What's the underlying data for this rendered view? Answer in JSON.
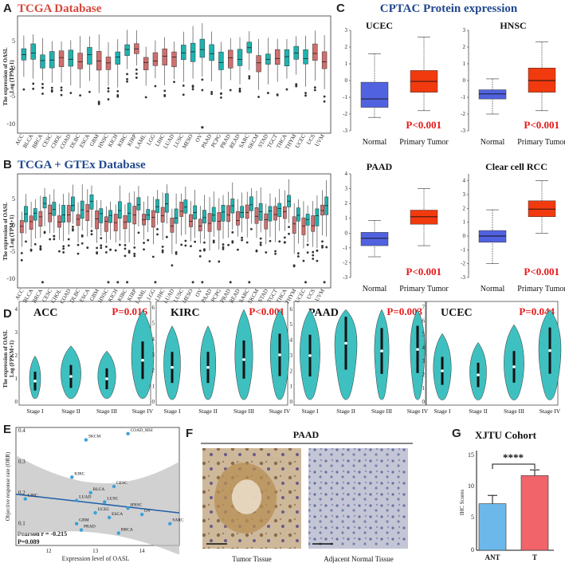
{
  "colors": {
    "teal": "#1fb3b0",
    "pink": "#cf6f6f",
    "blue": "#5162e0",
    "red": "#f23a0f",
    "violet": "#3fc0c0",
    "pred": "#e6191b"
  },
  "panelA": {
    "letter": "A",
    "title": "TCGA Database",
    "ylabel": "The expression of OASL",
    "ylabel2": "Log (TPM+1)",
    "yticks": [
      "5",
      "0",
      "-5",
      "-10"
    ]
  },
  "panelB": {
    "letter": "B",
    "title": "TCGA + GTEx Database",
    "ylabel": "The expression of OASL",
    "ylabel2": "Log (TPM+1)",
    "yticks": [
      "5",
      "0",
      "-5",
      "-10"
    ]
  },
  "cancers": [
    "ACC",
    "BLCA",
    "BRCA",
    "CESC",
    "CHOL",
    "COAD",
    "DLBC",
    "ESCA",
    "GBM",
    "HNSC",
    "KICH",
    "KIRC",
    "KIRP",
    "LAML",
    "LGG",
    "LIHC",
    "LUAD",
    "LUSC",
    "MESO",
    "OV",
    "PAAD",
    "PCPG",
    "PRAD",
    "READ",
    "SARC",
    "SKCM",
    "STAD",
    "TGCT",
    "THCA",
    "THYM",
    "UCEC",
    "UCS",
    "UVM"
  ],
  "panelC": {
    "letter": "C",
    "title": "CPTAC Protein expression",
    "plots": [
      {
        "name": "UCEC",
        "p": "P<0.001",
        "normal": {
          "med": -1.1,
          "q1": -1.6,
          "q3": -0.1,
          "lo": -2.2,
          "hi": 1.6
        },
        "tumor": {
          "med": -0.05,
          "q1": -0.7,
          "q3": 0.6,
          "lo": -1.8,
          "hi": 2.6
        },
        "ymin": -3,
        "ymax": 3,
        "ticks": [
          "3",
          "2",
          "1",
          "0",
          "-1",
          "-2",
          "-3"
        ]
      },
      {
        "name": "HNSC",
        "p": "P<0.001",
        "normal": {
          "med": -0.8,
          "q1": -1.1,
          "q3": -0.55,
          "lo": -2.0,
          "hi": 0.1
        },
        "tumor": {
          "med": 0.0,
          "q1": -0.7,
          "q3": 0.75,
          "lo": -1.8,
          "hi": 2.3
        },
        "ymin": -3,
        "ymax": 3,
        "ticks": [
          "3",
          "2",
          "1",
          "0",
          "-1",
          "-2",
          "-3"
        ]
      },
      {
        "name": "PAAD",
        "p": "P<0.001",
        "normal": {
          "med": -0.35,
          "q1": -0.85,
          "q3": 0.05,
          "lo": -1.6,
          "hi": 0.85
        },
        "tumor": {
          "med": 1.1,
          "q1": 0.6,
          "q3": 1.55,
          "lo": -0.85,
          "hi": 3.0
        },
        "ymin": -3,
        "ymax": 4,
        "ticks": [
          "4",
          "3",
          "2",
          "1",
          "0",
          "-1",
          "-2",
          "-3"
        ]
      },
      {
        "name": "Clear cell RCC",
        "p": "P<0.001",
        "normal": {
          "med": 0.0,
          "q1": -0.45,
          "q3": 0.4,
          "lo": -2.0,
          "hi": 1.9
        },
        "tumor": {
          "med": 1.95,
          "q1": 1.4,
          "q3": 2.55,
          "lo": 0.2,
          "hi": 4.0
        },
        "ymin": -3,
        "ymax": 4.5,
        "ticks": [
          "4",
          "3",
          "2",
          "1",
          "0",
          "-1",
          "-2",
          "-3"
        ]
      }
    ],
    "xlabels": [
      "Normal",
      "Primary Tumor"
    ]
  },
  "panelD": {
    "letter": "D",
    "ylabel": "The expression of OASL",
    "ylabel2": "Log (FPKM+1)",
    "stages": [
      "Stage I",
      "Stage II",
      "Stage III",
      "Stage IV"
    ],
    "plots": [
      {
        "name": "ACC",
        "p": "P=0.016",
        "ticks": [
          "4",
          "3",
          "2",
          "1",
          "0"
        ],
        "ymax": 4.2
      },
      {
        "name": "KIRC",
        "p": "P<0.001",
        "ticks": [
          "6",
          "5",
          "4",
          "3",
          "2",
          "1",
          "0"
        ],
        "ymax": 6.2
      },
      {
        "name": "PAAD",
        "p": "P=0.003",
        "ticks": [
          "6",
          "5",
          "4",
          "3",
          "2",
          "1",
          "0"
        ],
        "ymax": 6.3
      },
      {
        "name": "UCEC",
        "p": "P=0.044",
        "ticks": [
          "7",
          "6",
          "5",
          "4",
          "3",
          "2",
          "1",
          "0"
        ],
        "ymax": 7.2
      }
    ]
  },
  "panelE": {
    "letter": "E",
    "ylabel": "Objective response rate (ORR)",
    "xlabel": "Expression level of OASL",
    "pearson": "Pearson r = -0.215",
    "p": "P=0.089",
    "xticks": [
      "12",
      "13",
      "14"
    ],
    "yticks": [
      "0.4",
      "0.3",
      "0.2",
      "0.1"
    ],
    "points": [
      {
        "label": "SKCM",
        "x": 12.8,
        "y": 0.37
      },
      {
        "label": "COAD_MSI",
        "x": 13.7,
        "y": 0.39
      },
      {
        "label": "KIRC",
        "x": 12.5,
        "y": 0.25
      },
      {
        "label": "CESC",
        "x": 13.4,
        "y": 0.22
      },
      {
        "label": "BLCA",
        "x": 12.9,
        "y": 0.2
      },
      {
        "label": "LIHC",
        "x": 11.5,
        "y": 0.18
      },
      {
        "label": "LUAD",
        "x": 12.6,
        "y": 0.175
      },
      {
        "label": "LUSC",
        "x": 13.2,
        "y": 0.17
      },
      {
        "label": "HNSC",
        "x": 13.7,
        "y": 0.15
      },
      {
        "label": "UCEC",
        "x": 13.0,
        "y": 0.135
      },
      {
        "label": "OV",
        "x": 14.0,
        "y": 0.13
      },
      {
        "label": "ESCA",
        "x": 13.3,
        "y": 0.12
      },
      {
        "label": "SARC",
        "x": 14.6,
        "y": 0.1
      },
      {
        "label": "GBM",
        "x": 12.6,
        "y": 0.1
      },
      {
        "label": "PRAD",
        "x": 12.7,
        "y": 0.08
      },
      {
        "label": "BRCA",
        "x": 13.5,
        "y": 0.07
      }
    ]
  },
  "panelF": {
    "letter": "F",
    "title": "PAAD",
    "left": "Tumor Tissue",
    "right": "Adjacent Normal Tissue"
  },
  "panelG": {
    "letter": "G",
    "title": "XJTU Cohort",
    "ylabel": "IHC Scores",
    "sig": "****",
    "yticks": [
      "15",
      "10",
      "5",
      "0"
    ],
    "bars": [
      {
        "label": "ANT",
        "value": 7.3,
        "err": 1.3
      },
      {
        "label": "T",
        "value": 11.7,
        "err": 0.9
      }
    ]
  }
}
